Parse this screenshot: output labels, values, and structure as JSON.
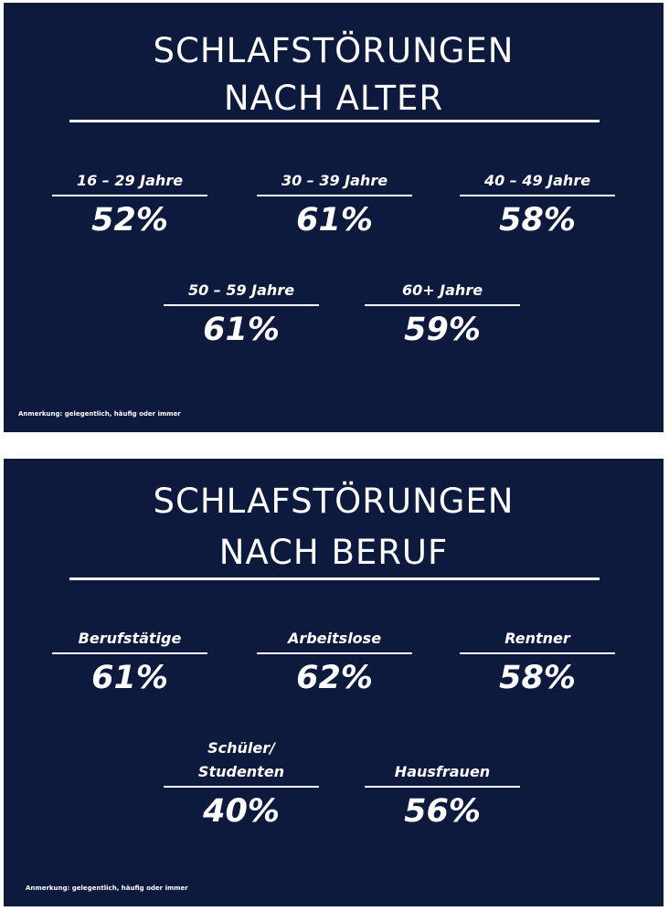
{
  "age_panel": {
    "title_line1": "SCHLAFSTÖRUNGEN",
    "title_line2": "NACH ALTER",
    "stats": [
      {
        "label": "16 – 29 Jahre",
        "value": "52%"
      },
      {
        "label": "30 – 39 Jahre",
        "value": "61%"
      },
      {
        "label": "40 – 49 Jahre",
        "value": "58%"
      },
      {
        "label": "50 – 59 Jahre",
        "value": "61%"
      },
      {
        "label": "60+ Jahre",
        "value": "59%"
      }
    ],
    "note": "Anmerkung: gelegentlich, häufig oder immer"
  },
  "job_panel": {
    "title_line1": "SCHLAFSTÖRUNGEN",
    "title_line2": "NACH BERUF",
    "stats": [
      {
        "label": "Berufstätige",
        "value": "61%"
      },
      {
        "label": "Arbeitslose",
        "value": "62%"
      },
      {
        "label": "Rentner",
        "value": "58%"
      },
      {
        "label_line1": "Schüler/",
        "label_line2": "Studenten",
        "value": "40%"
      },
      {
        "label": "Hausfrauen",
        "value": "56%"
      }
    ],
    "note": "Anmerkung: gelegentlich, häufig oder immer"
  },
  "colors": {
    "background": "#0d1a3d",
    "text": "#ffffff"
  }
}
